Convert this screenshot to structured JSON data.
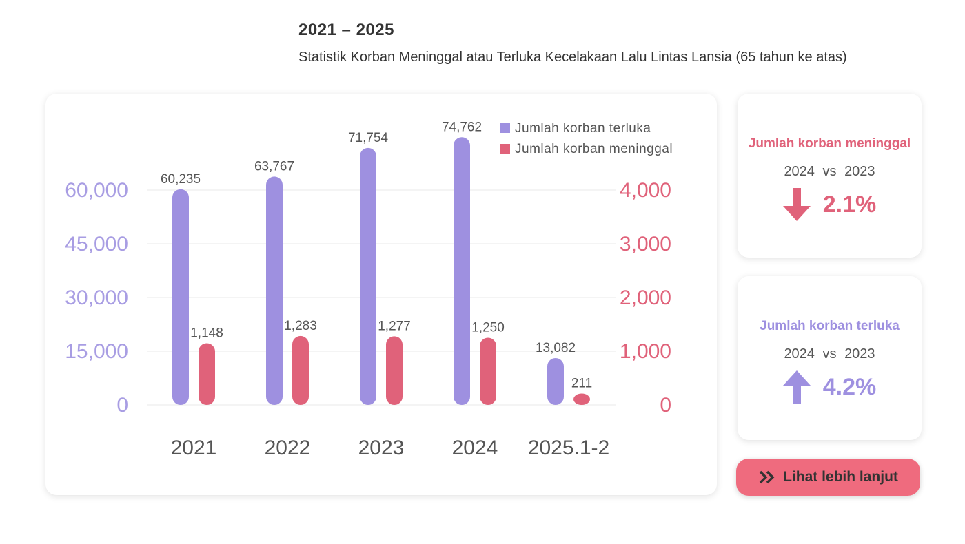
{
  "header": {
    "title": "2021 – 2025",
    "subtitle": "Statistik Korban Meninggal atau Terluka Kecelakaan Lalu Lintas Lansia (65 tahun ke atas)"
  },
  "chart_data": {
    "type": "bar",
    "categories": [
      "2021",
      "2022",
      "2023",
      "2024",
      "2025.1-2"
    ],
    "series": [
      {
        "name": "Jumlah korban terluka",
        "color": "#9e90e0",
        "values": [
          60235,
          63767,
          71754,
          74762,
          13082
        ],
        "value_labels": [
          "60,235",
          "63,767",
          "71,754",
          "74,762",
          "13,082"
        ]
      },
      {
        "name": "Jumlah korban meninggal",
        "color": "#e0627a",
        "axis": "y2",
        "values": [
          1148,
          1283,
          1277,
          1250,
          211
        ],
        "value_labels": [
          "1,148",
          "1,283",
          "1,277",
          "1,250",
          "211"
        ]
      }
    ],
    "ylim": [
      0,
      60000
    ],
    "yticks": [
      0,
      {
        "value": 15000,
        "label": "15,000"
      },
      {
        "value": 30000,
        "label": "30,000"
      },
      {
        "value": 45000,
        "label": "45,000"
      },
      {
        "value": 60000,
        "label": "60,000"
      }
    ],
    "y2lim": [
      0,
      4000
    ],
    "y2ticks": [
      0,
      {
        "value": 1000,
        "label": "1,000"
      },
      {
        "value": 2000,
        "label": "2,000"
      },
      {
        "value": 3000,
        "label": "3,000"
      },
      {
        "value": 4000,
        "label": "4,000"
      }
    ],
    "grid": true,
    "legend": "top-right"
  },
  "stats": [
    {
      "title": "Jumlah korban meninggal",
      "year_a": "2024",
      "vs": "vs",
      "year_b": "2023",
      "change": "2.1%"
    },
    {
      "title": "Jumlah korban terluka",
      "year_a": "2024",
      "vs": "vs",
      "year_b": "2023",
      "change": "4.2%"
    }
  ],
  "button": {
    "label": "Lihat lebih lanjut"
  }
}
